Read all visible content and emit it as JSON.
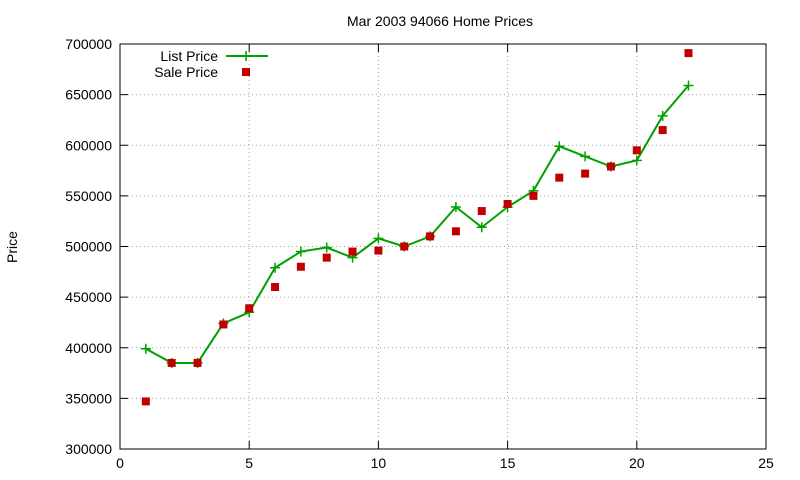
{
  "chart_data": {
    "type": "line",
    "title": "Mar 2003 94066 Home Prices",
    "xlabel": "",
    "ylabel": "Price",
    "xlim": [
      0,
      25
    ],
    "ylim": [
      300000,
      700000
    ],
    "xticks": [
      0,
      5,
      10,
      15,
      20,
      25
    ],
    "yticks": [
      300000,
      350000,
      400000,
      450000,
      500000,
      550000,
      600000,
      650000,
      700000
    ],
    "grid": true,
    "legend_position": "top-left",
    "series": [
      {
        "name": "List Price",
        "style": "linespoints",
        "color": "#00a000",
        "x": [
          1,
          2,
          3,
          4,
          5,
          6,
          7,
          8,
          9,
          10,
          11,
          12,
          13,
          14,
          15,
          16,
          17,
          18,
          19,
          20,
          21,
          22
        ],
        "y": [
          399000,
          385000,
          385000,
          424000,
          435000,
          479000,
          495000,
          499000,
          489000,
          508000,
          500000,
          510000,
          539000,
          519000,
          539000,
          555000,
          599000,
          589000,
          579000,
          585000,
          629000,
          659000
        ]
      },
      {
        "name": "Sale Price",
        "style": "points",
        "color": "#c00000",
        "x": [
          1,
          2,
          3,
          4,
          5,
          6,
          7,
          8,
          9,
          10,
          11,
          12,
          13,
          14,
          15,
          16,
          17,
          18,
          19,
          20,
          21,
          22
        ],
        "y": [
          347000,
          385000,
          385000,
          423000,
          439000,
          460000,
          480000,
          489000,
          495000,
          496000,
          500000,
          510000,
          515000,
          535000,
          542000,
          550000,
          568000,
          572000,
          579000,
          595000,
          615000,
          691000
        ]
      }
    ]
  }
}
